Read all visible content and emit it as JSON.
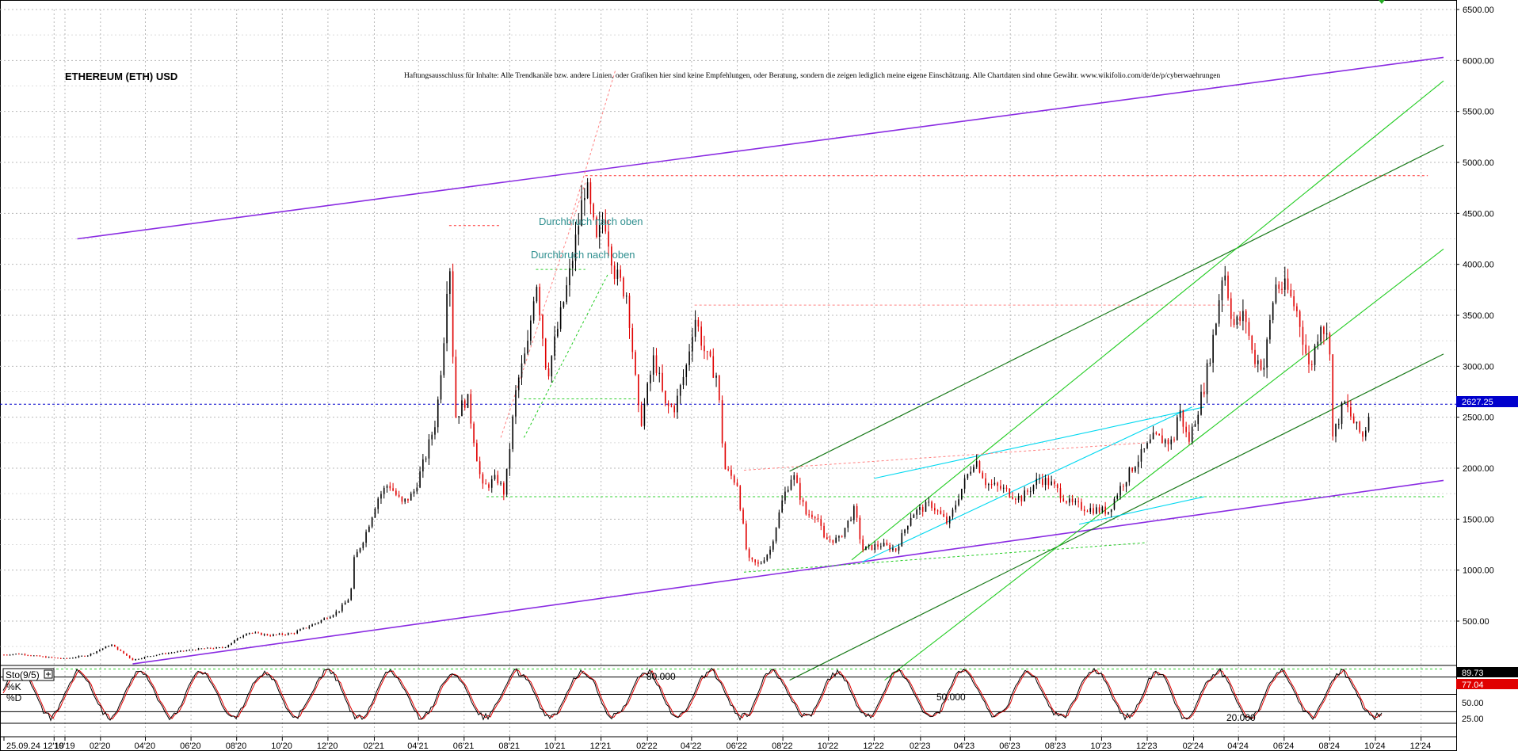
{
  "chart_data": {
    "type": "candlestick",
    "title": "ETHEREUM (ETH) USD",
    "disclaimer": "Haftungsausschluss für Inhalte: Alle Trendkanäle bzw. andere Linien, oder Grafiken hier sind keine Empfehlungen, oder Beratung, sondern die zeigen lediglich meine eigene Einschätzung. Alle Chartdaten sind ohne Gewähr.  www.wikifolio.com/de/de/p/cyberwaehrungen",
    "y_ticks": [
      "6500.00",
      "6000.00",
      "5500.00",
      "5000.00",
      "4500.00",
      "4000.00",
      "3500.00",
      "3000.00",
      "2500.00",
      "2000.00",
      "1500.00",
      "1000.00",
      "500.00"
    ],
    "y_tick_values": [
      6500,
      6000,
      5500,
      5000,
      4500,
      4000,
      3500,
      3000,
      2500,
      2000,
      1500,
      1000,
      500
    ],
    "ylim": [
      -80,
      6500
    ],
    "last_price_label": "2627.25",
    "last_price": 2627.25,
    "x_ticks": [
      "25.09.24",
      "10'19",
      "12'19",
      "02'20",
      "04'20",
      "06'20",
      "08'20",
      "10'20",
      "12'20",
      "02'21",
      "04'21",
      "06'21",
      "08'21",
      "10'21",
      "12'21",
      "02'22",
      "04'22",
      "06'22",
      "08'22",
      "10'22",
      "12'22",
      "02'23",
      "04'23",
      "06'23",
      "08'23",
      "10'23",
      "12'23",
      "02'24",
      "04'24",
      "06'24",
      "08'24",
      "10'24",
      "12'24"
    ],
    "annotations": [
      "Durchbruch nach oben",
      "Durchbruch nach oben"
    ],
    "price_points": [
      [
        "2019-09-25",
        170
      ],
      [
        "2019-10-15",
        180
      ],
      [
        "2019-11-15",
        150
      ],
      [
        "2019-12-15",
        130
      ],
      [
        "2020-01-15",
        165
      ],
      [
        "2020-02-15",
        270
      ],
      [
        "2020-03-15",
        120
      ],
      [
        "2020-04-15",
        170
      ],
      [
        "2020-05-15",
        200
      ],
      [
        "2020-06-15",
        230
      ],
      [
        "2020-07-15",
        240
      ],
      [
        "2020-08-15",
        390
      ],
      [
        "2020-09-15",
        360
      ],
      [
        "2020-10-15",
        380
      ],
      [
        "2020-11-15",
        480
      ],
      [
        "2020-12-15",
        600
      ],
      [
        "2020-12-31",
        740
      ],
      [
        "2021-01-05",
        1100
      ],
      [
        "2021-01-20",
        1350
      ],
      [
        "2021-02-05",
        1700
      ],
      [
        "2021-02-20",
        1850
      ],
      [
        "2021-03-10",
        1650
      ],
      [
        "2021-03-25",
        1750
      ],
      [
        "2021-04-10",
        2100
      ],
      [
        "2021-04-25",
        2500
      ],
      [
        "2021-05-05",
        3300
      ],
      [
        "2021-05-12",
        4200
      ],
      [
        "2021-05-20",
        2500
      ],
      [
        "2021-06-05",
        2700
      ],
      [
        "2021-06-25",
        1800
      ],
      [
        "2021-07-15",
        1900
      ],
      [
        "2021-07-25",
        1750
      ],
      [
        "2021-08-10",
        2800
      ],
      [
        "2021-08-25",
        3200
      ],
      [
        "2021-09-05",
        3900
      ],
      [
        "2021-09-20",
        2900
      ],
      [
        "2021-10-05",
        3400
      ],
      [
        "2021-10-20",
        3900
      ],
      [
        "2021-11-01",
        4400
      ],
      [
        "2021-11-10",
        4800
      ],
      [
        "2021-11-25",
        4200
      ],
      [
        "2021-12-05",
        4500
      ],
      [
        "2021-12-20",
        3900
      ],
      [
        "2022-01-05",
        3700
      ],
      [
        "2022-01-22",
        2400
      ],
      [
        "2022-02-10",
        3100
      ],
      [
        "2022-02-25",
        2600
      ],
      [
        "2022-03-10",
        2600
      ],
      [
        "2022-03-25",
        3000
      ],
      [
        "2022-04-05",
        3500
      ],
      [
        "2022-04-20",
        3100
      ],
      [
        "2022-05-05",
        2900
      ],
      [
        "2022-05-15",
        2000
      ],
      [
        "2022-06-01",
        1850
      ],
      [
        "2022-06-15",
        1100
      ],
      [
        "2022-06-30",
        1050
      ],
      [
        "2022-07-15",
        1200
      ],
      [
        "2022-08-01",
        1700
      ],
      [
        "2022-08-14",
        1950
      ],
      [
        "2022-09-01",
        1550
      ],
      [
        "2022-09-15",
        1550
      ],
      [
        "2022-09-25",
        1300
      ],
      [
        "2022-10-15",
        1300
      ],
      [
        "2022-11-05",
        1600
      ],
      [
        "2022-11-15",
        1200
      ],
      [
        "2022-12-10",
        1250
      ],
      [
        "2022-12-30",
        1200
      ],
      [
        "2023-01-20",
        1550
      ],
      [
        "2023-02-15",
        1650
      ],
      [
        "2023-03-10",
        1450
      ],
      [
        "2023-03-25",
        1750
      ],
      [
        "2023-04-15",
        2100
      ],
      [
        "2023-04-30",
        1850
      ],
      [
        "2023-05-20",
        1800
      ],
      [
        "2023-06-15",
        1700
      ],
      [
        "2023-07-10",
        1900
      ],
      [
        "2023-07-25",
        1850
      ],
      [
        "2023-08-20",
        1650
      ],
      [
        "2023-09-15",
        1600
      ],
      [
        "2023-10-10",
        1580
      ],
      [
        "2023-10-25",
        1800
      ],
      [
        "2023-11-15",
        2050
      ],
      [
        "2023-12-10",
        2300
      ],
      [
        "2024-01-05",
        2250
      ],
      [
        "2024-01-12",
        2600
      ],
      [
        "2024-01-25",
        2250
      ],
      [
        "2024-02-15",
        2800
      ],
      [
        "2024-03-01",
        3400
      ],
      [
        "2024-03-12",
        4000
      ],
      [
        "2024-03-25",
        3400
      ],
      [
        "2024-04-10",
        3500
      ],
      [
        "2024-04-20",
        3100
      ],
      [
        "2024-05-05",
        3000
      ],
      [
        "2024-05-20",
        3800
      ],
      [
        "2024-06-05",
        3750
      ],
      [
        "2024-06-20",
        3500
      ],
      [
        "2024-07-05",
        2950
      ],
      [
        "2024-07-20",
        3450
      ],
      [
        "2024-08-01",
        3200
      ],
      [
        "2024-08-05",
        2300
      ],
      [
        "2024-08-20",
        2650
      ],
      [
        "2024-09-05",
        2400
      ],
      [
        "2024-09-15",
        2300
      ],
      [
        "2024-09-25",
        2627
      ]
    ],
    "trend_lines_purple": [
      {
        "from": [
          "2020-01-01",
          4250
        ],
        "to": [
          "2024-12-31",
          6030
        ]
      },
      {
        "from": [
          "2020-03-15",
          80
        ],
        "to": [
          "2024-12-31",
          1880
        ]
      }
    ],
    "horizontal_levels": [
      {
        "value": 4870,
        "color": "#ff3030"
      },
      {
        "value": 3600,
        "color": "#ff8080"
      },
      {
        "value": 2680,
        "color": "#30d030"
      },
      {
        "value": 1720,
        "color": "#30d030"
      },
      {
        "value": 30,
        "color": "#30d030"
      }
    ],
    "stochastic": {
      "label": "Sto(9/5)",
      "k_label": "%K",
      "d_label": "%D",
      "k_value": "89.73",
      "d_value": "77.04",
      "levels": [
        "80.000",
        "50.000",
        "20.000"
      ],
      "axis_ticks": [
        "50.00",
        "25.00"
      ]
    },
    "colors": {
      "up": "#000000",
      "down": "#e00000",
      "purple": "#8a2be2",
      "green": "#22cc22",
      "dark_green": "#1a7a1a",
      "cyan": "#00d8f0",
      "price_line": "#0000cc"
    }
  }
}
